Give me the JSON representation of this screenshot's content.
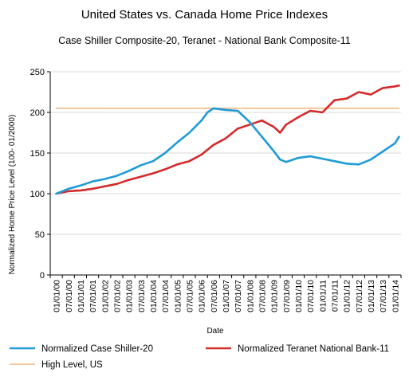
{
  "chart_data": {
    "type": "line",
    "title": "United States vs. Canada Home Price Indexes",
    "subtitle": "Case Shiller Composite-20, Teranet - National Bank Composite-11",
    "xlabel": "Date",
    "ylabel": "Normalized Home Price Level (100- 01/2000)",
    "ylim": [
      0,
      250
    ],
    "yticks": [
      0,
      50,
      100,
      150,
      200,
      250
    ],
    "x_tick_labels": [
      "01/01/00",
      "07/01/00",
      "01/01/01",
      "07/01/01",
      "01/01/02",
      "07/01/02",
      "01/01/03",
      "07/01/03",
      "01/01/04",
      "07/01/04",
      "01/01/05",
      "07/01/05",
      "01/01/06",
      "07/01/06",
      "01/01/07",
      "07/01/07",
      "01/01/08",
      "07/01/08",
      "01/01/09",
      "07/01/09",
      "01/01/10",
      "07/01/10",
      "01/01/11",
      "07/01/11",
      "01/01/12",
      "07/01/12",
      "01/01/13",
      "07/01/13",
      "01/01/14"
    ],
    "grid": "horizontal",
    "legend_position": "bottom",
    "series": [
      {
        "name": "Normalized Case Shiller-20",
        "color": "#1e9bd7",
        "x": [
          "01/01/00",
          "07/01/00",
          "01/01/01",
          "07/01/01",
          "01/01/02",
          "07/01/02",
          "01/01/03",
          "07/01/03",
          "01/01/04",
          "07/01/04",
          "01/01/05",
          "07/01/05",
          "01/01/06",
          "04/01/06",
          "07/01/06",
          "01/01/07",
          "07/01/07",
          "01/01/08",
          "07/01/08",
          "01/01/09",
          "04/01/09",
          "07/01/09",
          "01/01/10",
          "07/01/10",
          "01/01/11",
          "07/01/11",
          "01/01/12",
          "07/01/12",
          "01/01/13",
          "07/01/13",
          "01/01/14",
          "03/01/14"
        ],
        "values": [
          100,
          106,
          110,
          115,
          118,
          122,
          128,
          135,
          140,
          150,
          163,
          175,
          190,
          200,
          205,
          203,
          202,
          188,
          170,
          152,
          142,
          139,
          144,
          146,
          143,
          140,
          137,
          136,
          142,
          152,
          162,
          170
        ]
      },
      {
        "name": "Normalized Teranet National Bank-11",
        "color": "#d42a2a",
        "x": [
          "01/01/00",
          "07/01/00",
          "01/01/01",
          "07/01/01",
          "01/01/02",
          "07/01/02",
          "01/01/03",
          "07/01/03",
          "01/01/04",
          "07/01/04",
          "01/01/05",
          "07/01/05",
          "01/01/06",
          "07/01/06",
          "01/01/07",
          "07/01/07",
          "01/01/08",
          "07/01/08",
          "01/01/09",
          "04/01/09",
          "07/01/09",
          "01/01/10",
          "07/01/10",
          "01/01/11",
          "07/01/11",
          "01/01/12",
          "07/01/12",
          "01/01/13",
          "07/01/13",
          "01/01/14",
          "03/01/14"
        ],
        "values": [
          100,
          103,
          104,
          106,
          109,
          112,
          117,
          121,
          125,
          130,
          136,
          140,
          148,
          160,
          168,
          180,
          185,
          190,
          182,
          175,
          185,
          194,
          202,
          200,
          215,
          217,
          225,
          222,
          230,
          232,
          233
        ]
      },
      {
        "name": "High Level, US",
        "color": "#f4b37b",
        "x": [
          "01/01/00",
          "03/01/14"
        ],
        "values": [
          205,
          205
        ]
      }
    ]
  }
}
